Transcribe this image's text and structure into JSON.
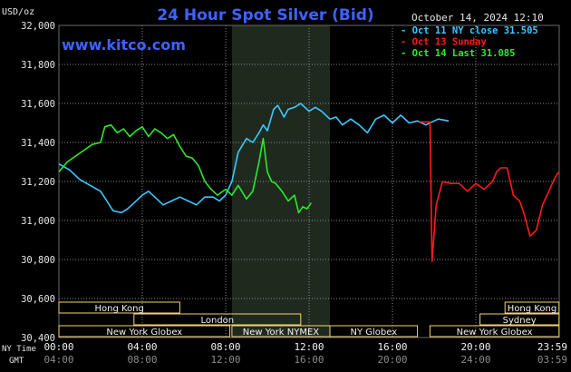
{
  "header": {
    "title": "24 Hour Spot Silver (Bid)",
    "unit": "USD/oz",
    "timestamp": "October 14, 2024 12:10",
    "website": "www.kitco.com"
  },
  "colors": {
    "background": "#000000",
    "plot_bg": "#000000",
    "grid": "#8a8a8a",
    "title": "#3f62ff",
    "oct11": "#3fc8ff",
    "oct13": "#ff1a1a",
    "oct14": "#2ee82e",
    "session_bar": "#f2d472",
    "session_text": "#f2f2f2",
    "highlight": "#1f2a1f"
  },
  "chart_data": {
    "type": "line",
    "title": "24 Hour Spot Silver (Bid)",
    "ylabel": "USD/oz",
    "ylim": [
      30400,
      32000
    ],
    "y_ticks": [
      "32,000",
      "31,800",
      "31,600",
      "31,400",
      "31,200",
      "31,000",
      "30,800",
      "30,600",
      "30,400"
    ],
    "x_axis": {
      "row1_label": "NY Time",
      "row1_ticks": [
        "00:00",
        "04:00",
        "08:00",
        "12:00",
        "16:00",
        "20:00",
        "23:59"
      ],
      "row2_label": "GMT",
      "row2_ticks": [
        "04:00",
        "08:00",
        "12:00",
        "16:00",
        "20:00",
        "24:00",
        "03:59"
      ],
      "xlim_hours": [
        0,
        24
      ]
    },
    "highlight_hours": [
      8.3,
      13.0
    ],
    "legend": [
      {
        "label": "- Oct 11 NY close 31.505",
        "series": "oct11"
      },
      {
        "label": "- Oct 13 Sunday",
        "series": "oct13"
      },
      {
        "label": "- Oct 14 Last 31.085",
        "series": "oct14"
      }
    ],
    "legend_position": "top-right",
    "series": [
      {
        "name": "Oct 11 NY close 31.505",
        "key": "oct11",
        "x": [
          0,
          0.5,
          1.0,
          1.5,
          2.0,
          2.3,
          2.6,
          3.0,
          3.3,
          3.6,
          4.0,
          4.3,
          4.7,
          5.0,
          5.4,
          5.8,
          6.2,
          6.6,
          7.0,
          7.4,
          7.7,
          8.0,
          8.3,
          8.6,
          9.0,
          9.3,
          9.6,
          9.8,
          10.0,
          10.3,
          10.5,
          10.8,
          11.0,
          11.3,
          11.6,
          12.0,
          12.3,
          12.6,
          13.0,
          13.3,
          13.6,
          14.0,
          14.4,
          14.8,
          15.2,
          15.6,
          16.0,
          16.4,
          16.8,
          17.2,
          17.6,
          18.0,
          18.2,
          18.7
        ],
        "y": [
          31290,
          31260,
          31210,
          31180,
          31150,
          31100,
          31050,
          31040,
          31060,
          31090,
          31130,
          31150,
          31110,
          31080,
          31100,
          31120,
          31100,
          31080,
          31120,
          31120,
          31100,
          31130,
          31200,
          31350,
          31420,
          31400,
          31450,
          31490,
          31460,
          31570,
          31590,
          31530,
          31570,
          31580,
          31600,
          31560,
          31580,
          31560,
          31520,
          31530,
          31490,
          31520,
          31490,
          31450,
          31520,
          31540,
          31500,
          31540,
          31500,
          31510,
          31490,
          31510,
          31520,
          31510
        ]
      },
      {
        "name": "Oct 13 Sunday",
        "key": "oct13",
        "x": [
          17.3,
          17.6,
          17.8,
          17.9,
          18.1,
          18.4,
          18.8,
          19.2,
          19.6,
          20.0,
          20.4,
          20.8,
          21.0,
          21.2,
          21.5,
          21.8,
          22.1,
          22.3,
          22.6,
          22.9,
          23.2,
          23.5,
          23.8,
          23.99
        ],
        "y": [
          31505,
          31505,
          31505,
          30790,
          31080,
          31200,
          31190,
          31190,
          31150,
          31190,
          31160,
          31200,
          31250,
          31270,
          31270,
          31130,
          31100,
          31040,
          30920,
          30950,
          31080,
          31150,
          31220,
          31250
        ]
      },
      {
        "name": "Oct 14 Last 31.085",
        "key": "oct14",
        "x": [
          0,
          0.4,
          0.8,
          1.2,
          1.6,
          2.0,
          2.2,
          2.5,
          2.8,
          3.1,
          3.4,
          3.7,
          4.0,
          4.3,
          4.6,
          4.9,
          5.2,
          5.5,
          5.8,
          6.1,
          6.4,
          6.7,
          7.0,
          7.3,
          7.6,
          8.0,
          8.3,
          8.6,
          9.0,
          9.3,
          9.6,
          9.8,
          10.0,
          10.2,
          10.4,
          10.7,
          11.0,
          11.3,
          11.5,
          11.7,
          11.9,
          12.1
        ],
        "y": [
          31250,
          31300,
          31330,
          31360,
          31390,
          31400,
          31480,
          31490,
          31450,
          31470,
          31430,
          31460,
          31480,
          31430,
          31470,
          31450,
          31420,
          31440,
          31380,
          31330,
          31320,
          31280,
          31200,
          31160,
          31130,
          31160,
          31130,
          31180,
          31110,
          31150,
          31300,
          31420,
          31250,
          31200,
          31190,
          31150,
          31100,
          31130,
          31040,
          31070,
          31060,
          31090
        ]
      }
    ],
    "sessions": [
      {
        "label": "Hong Kong",
        "start_hour": 0,
        "end_hour": 5.8,
        "row": 1
      },
      {
        "label": "London",
        "start_hour": 3.6,
        "end_hour": 11.6,
        "row": 2
      },
      {
        "label": "New York Globex",
        "start_hour": 0,
        "end_hour": 8.2,
        "row": 3
      },
      {
        "label": "New York NYMEX",
        "start_hour": 8.3,
        "end_hour": 13.0,
        "row": 3
      },
      {
        "label": "NY Globex",
        "start_hour": 13.0,
        "end_hour": 17.2,
        "row": 3
      },
      {
        "label": "Hong Kong",
        "start_hour": 21.4,
        "end_hour": 23.99,
        "row": 1
      },
      {
        "label": "Sydney",
        "start_hour": 20.2,
        "end_hour": 23.99,
        "row": 2
      },
      {
        "label": "New York Globex",
        "start_hour": 17.8,
        "end_hour": 23.99,
        "row": 3
      }
    ]
  }
}
